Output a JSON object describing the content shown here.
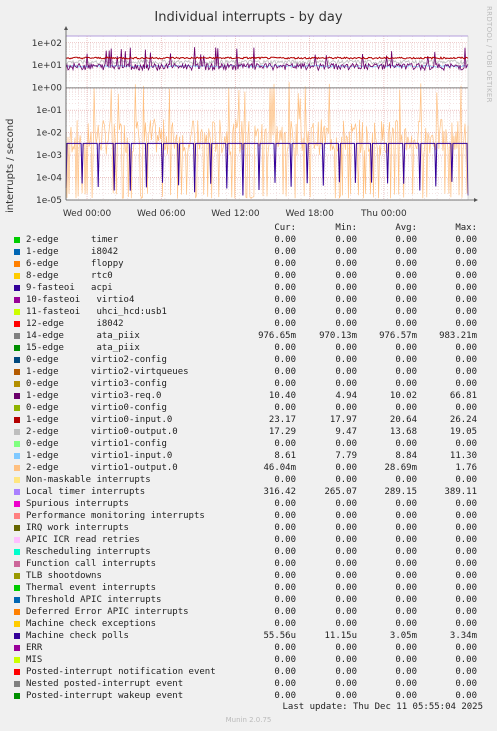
{
  "chart_data": {
    "type": "line",
    "title": "Individual interrupts - by day",
    "ylabel": "interrupts / second",
    "yscale": "log",
    "ylim": [
      1e-05,
      200
    ],
    "yticks": [
      "1e+02",
      "1e+01",
      "1e+00",
      "1e-01",
      "1e-02",
      "1e-03",
      "1e-04",
      "1e-05"
    ],
    "xticks": [
      "Wed 00:00",
      "Wed 06:00",
      "Wed 12:00",
      "Wed 18:00",
      "Thu 00:00"
    ],
    "grid": true,
    "columns": [
      "Cur:",
      "Min:",
      "Avg:",
      "Max:"
    ],
    "series": [
      {
        "name": "2-edge      timer",
        "color": "#00cc00",
        "cur": "0.00",
        "min": "0.00",
        "avg": "0.00",
        "max": "0.00"
      },
      {
        "name": "1-edge      i8042",
        "color": "#0066b3",
        "cur": "0.00",
        "min": "0.00",
        "avg": "0.00",
        "max": "0.00"
      },
      {
        "name": "6-edge      floppy",
        "color": "#ff8000",
        "cur": "0.00",
        "min": "0.00",
        "avg": "0.00",
        "max": "0.00"
      },
      {
        "name": "8-edge      rtc0",
        "color": "#ffcc00",
        "cur": "0.00",
        "min": "0.00",
        "avg": "0.00",
        "max": "0.00"
      },
      {
        "name": "9-fasteoi   acpi",
        "color": "#330099",
        "cur": "0.00",
        "min": "0.00",
        "avg": "0.00",
        "max": "0.00"
      },
      {
        "name": "10-fasteoi   virtio4",
        "color": "#990099",
        "cur": "0.00",
        "min": "0.00",
        "avg": "0.00",
        "max": "0.00"
      },
      {
        "name": "11-fasteoi   uhci_hcd:usb1",
        "color": "#ccff00",
        "cur": "0.00",
        "min": "0.00",
        "avg": "0.00",
        "max": "0.00"
      },
      {
        "name": "12-edge      i8042",
        "color": "#ff0000",
        "cur": "0.00",
        "min": "0.00",
        "avg": "0.00",
        "max": "0.00"
      },
      {
        "name": "14-edge      ata_piix",
        "color": "#808080",
        "cur": "976.65m",
        "min": "970.13m",
        "avg": "976.57m",
        "max": "983.21m"
      },
      {
        "name": "15-edge      ata_piix",
        "color": "#008f00",
        "cur": "0.00",
        "min": "0.00",
        "avg": "0.00",
        "max": "0.00"
      },
      {
        "name": "0-edge      virtio2-config",
        "color": "#00487d",
        "cur": "0.00",
        "min": "0.00",
        "avg": "0.00",
        "max": "0.00"
      },
      {
        "name": "1-edge      virtio2-virtqueues",
        "color": "#b35a00",
        "cur": "0.00",
        "min": "0.00",
        "avg": "0.00",
        "max": "0.00"
      },
      {
        "name": "0-edge      virtio3-config",
        "color": "#b38f00",
        "cur": "0.00",
        "min": "0.00",
        "avg": "0.00",
        "max": "0.00"
      },
      {
        "name": "1-edge      virtio3-req.0",
        "color": "#6b006b",
        "cur": "10.40",
        "min": "4.94",
        "avg": "10.02",
        "max": "66.81"
      },
      {
        "name": "0-edge      virtio0-config",
        "color": "#8fb300",
        "cur": "0.00",
        "min": "0.00",
        "avg": "0.00",
        "max": "0.00"
      },
      {
        "name": "1-edge      virtio0-input.0",
        "color": "#b30000",
        "cur": "23.17",
        "min": "17.97",
        "avg": "20.64",
        "max": "26.24"
      },
      {
        "name": "2-edge      virtio0-output.0",
        "color": "#bebebe",
        "cur": "17.29",
        "min": "9.47",
        "avg": "13.68",
        "max": "19.05"
      },
      {
        "name": "0-edge      virtio1-config",
        "color": "#80ff80",
        "cur": "0.00",
        "min": "0.00",
        "avg": "0.00",
        "max": "0.00"
      },
      {
        "name": "1-edge      virtio1-input.0",
        "color": "#80c9ff",
        "cur": "8.61",
        "min": "7.79",
        "avg": "8.84",
        "max": "11.30"
      },
      {
        "name": "2-edge      virtio1-output.0",
        "color": "#ffc080",
        "cur": "46.04m",
        "min": "0.00",
        "avg": "28.69m",
        "max": "1.76"
      },
      {
        "name": "Non-maskable interrupts",
        "color": "#ffe680",
        "cur": "0.00",
        "min": "0.00",
        "avg": "0.00",
        "max": "0.00"
      },
      {
        "name": "Local timer interrupts",
        "color": "#aa80ff",
        "cur": "316.42",
        "min": "265.07",
        "avg": "289.15",
        "max": "389.11"
      },
      {
        "name": "Spurious interrupts",
        "color": "#ee00cc",
        "cur": "0.00",
        "min": "0.00",
        "avg": "0.00",
        "max": "0.00"
      },
      {
        "name": "Performance monitoring interrupts",
        "color": "#ff8080",
        "cur": "0.00",
        "min": "0.00",
        "avg": "0.00",
        "max": "0.00"
      },
      {
        "name": "IRQ work interrupts",
        "color": "#666600",
        "cur": "0.00",
        "min": "0.00",
        "avg": "0.00",
        "max": "0.00"
      },
      {
        "name": "APIC ICR read retries",
        "color": "#ffbfff",
        "cur": "0.00",
        "min": "0.00",
        "avg": "0.00",
        "max": "0.00"
      },
      {
        "name": "Rescheduling interrupts",
        "color": "#00ffcc",
        "cur": "0.00",
        "min": "0.00",
        "avg": "0.00",
        "max": "0.00"
      },
      {
        "name": "Function call interrupts",
        "color": "#cc6699",
        "cur": "0.00",
        "min": "0.00",
        "avg": "0.00",
        "max": "0.00"
      },
      {
        "name": "TLB shootdowns",
        "color": "#999900",
        "cur": "0.00",
        "min": "0.00",
        "avg": "0.00",
        "max": "0.00"
      },
      {
        "name": "Thermal event interrupts",
        "color": "#00cc00",
        "cur": "0.00",
        "min": "0.00",
        "avg": "0.00",
        "max": "0.00"
      },
      {
        "name": "Threshold APIC interrupts",
        "color": "#0066b3",
        "cur": "0.00",
        "min": "0.00",
        "avg": "0.00",
        "max": "0.00"
      },
      {
        "name": "Deferred Error APIC interrupts",
        "color": "#ff8000",
        "cur": "0.00",
        "min": "0.00",
        "avg": "0.00",
        "max": "0.00"
      },
      {
        "name": "Machine check exceptions",
        "color": "#ffcc00",
        "cur": "0.00",
        "min": "0.00",
        "avg": "0.00",
        "max": "0.00"
      },
      {
        "name": "Machine check polls",
        "color": "#330099",
        "cur": "55.56u",
        "min": "11.15u",
        "avg": "3.05m",
        "max": "3.34m"
      },
      {
        "name": "ERR",
        "color": "#990099",
        "cur": "0.00",
        "min": "0.00",
        "avg": "0.00",
        "max": "0.00"
      },
      {
        "name": "MIS",
        "color": "#ccff00",
        "cur": "0.00",
        "min": "0.00",
        "avg": "0.00",
        "max": "0.00"
      },
      {
        "name": "Posted-interrupt notification event",
        "color": "#ff0000",
        "cur": "0.00",
        "min": "0.00",
        "avg": "0.00",
        "max": "0.00"
      },
      {
        "name": "Nested posted-interrupt event",
        "color": "#808080",
        "cur": "0.00",
        "min": "0.00",
        "avg": "0.00",
        "max": "0.00"
      },
      {
        "name": "Posted-interrupt wakeup event",
        "color": "#008f00",
        "cur": "0.00",
        "min": "0.00",
        "avg": "0.00",
        "max": "0.00"
      }
    ]
  },
  "footer": {
    "last_update": "Last update: Thu Dec 11 05:55:04 2025",
    "munin": "Munin 2.0.75"
  },
  "side_label": "RRDTOOL / TOBI OETIKER"
}
